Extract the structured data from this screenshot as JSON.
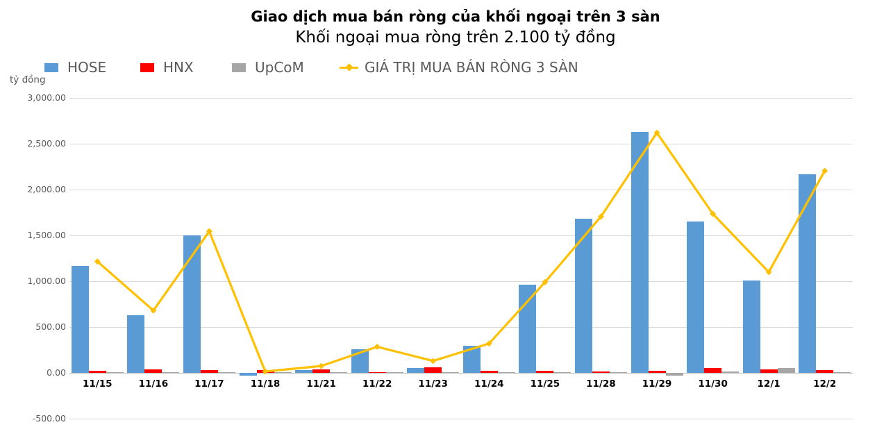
{
  "chart_data": {
    "type": "bar",
    "title": "Giao dịch mua bán ròng của khối ngoại trên 3 sàn",
    "subtitle": "Khối ngoại mua ròng trên 2.100 tỷ đồng",
    "ylabel_unit": "tỷ đồng",
    "categories": [
      "11/15",
      "11/16",
      "11/17",
      "11/18",
      "11/21",
      "11/22",
      "11/23",
      "11/24",
      "11/25",
      "11/28",
      "11/29",
      "11/30",
      "12/1",
      "12/2"
    ],
    "series": [
      {
        "name": "HOSE",
        "color": "#5B9BD5",
        "values": [
          1170,
          630,
          1500,
          -30,
          30,
          255,
          55,
          295,
          960,
          1680,
          2630,
          1650,
          1010,
          2170
        ]
      },
      {
        "name": "HNX",
        "color": "#FF0000",
        "values": [
          20,
          35,
          30,
          30,
          35,
          10,
          60,
          25,
          20,
          15,
          20,
          55,
          35,
          30
        ]
      },
      {
        "name": "UpCoM",
        "color": "#A6A6A6",
        "values": [
          10,
          10,
          10,
          10,
          10,
          8,
          5,
          8,
          8,
          8,
          -30,
          15,
          50,
          5
        ]
      }
    ],
    "line_series": {
      "name": "GIÁ TRỊ MUA BÁN RÒNG 3 SÀN",
      "color": "#FFC000",
      "values": [
        1215,
        680,
        1545,
        15,
        75,
        285,
        130,
        320,
        990,
        1705,
        2620,
        1735,
        1100,
        2205
      ]
    },
    "yticks": [
      3000,
      2500,
      2000,
      1500,
      1000,
      500,
      0,
      -500
    ],
    "ytick_labels": [
      "3,000.00",
      "2,500.00",
      "2,000.00",
      "1,500.00",
      "1,000.00",
      "500.00",
      "0.00",
      "-500.00"
    ],
    "ylim": [
      -500,
      3000
    ],
    "grid": true,
    "legend_position": "top-left"
  }
}
